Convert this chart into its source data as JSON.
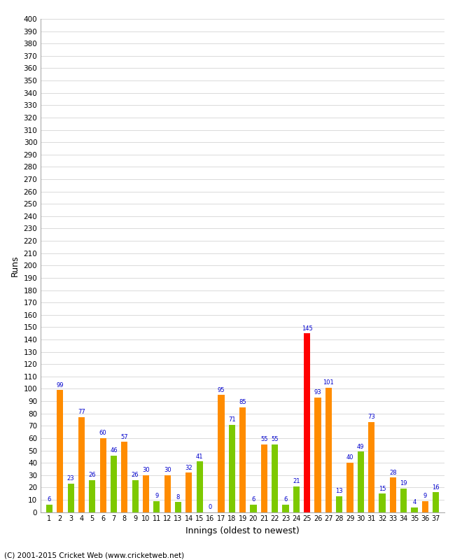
{
  "xlabel": "Innings (oldest to newest)",
  "ylabel": "Runs",
  "copyright": "(C) 2001-2015 Cricket Web (www.cricketweb.net)",
  "ylim": [
    0,
    400
  ],
  "values": [
    6,
    99,
    23,
    77,
    26,
    60,
    46,
    57,
    26,
    30,
    9,
    30,
    8,
    32,
    41,
    0,
    95,
    71,
    85,
    6,
    55,
    55,
    6,
    21,
    145,
    93,
    101,
    13,
    40,
    49,
    73,
    15,
    28,
    19,
    4,
    9,
    16
  ],
  "colors": [
    "#7dc900",
    "#ff8c00",
    "#7dc900",
    "#ff8c00",
    "#7dc900",
    "#ff8c00",
    "#7dc900",
    "#ff8c00",
    "#7dc900",
    "#ff8c00",
    "#7dc900",
    "#ff8c00",
    "#7dc900",
    "#ff8c00",
    "#7dc900",
    "#ff8c00",
    "#ff8c00",
    "#7dc900",
    "#ff8c00",
    "#7dc900",
    "#ff8c00",
    "#7dc900",
    "#7dc900",
    "#7dc900",
    "#ff0000",
    "#ff8c00",
    "#ff8c00",
    "#7dc900",
    "#ff8c00",
    "#7dc900",
    "#ff8c00",
    "#7dc900",
    "#ff8c00",
    "#7dc900",
    "#7dc900",
    "#ff8c00",
    "#7dc900"
  ],
  "label_color": "#0000cc",
  "background_color": "#ffffff",
  "grid_color": "#cccccc",
  "bar_width": 0.6
}
